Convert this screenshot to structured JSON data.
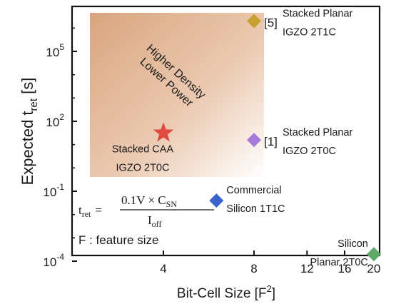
{
  "chart_data": {
    "type": "scatter",
    "title": "",
    "xlabel": "Bit-Cell Size [F",
    "xlabel_sup": "2",
    "xlabel_end": "]",
    "ylabel": "Expected t",
    "ylabel_sub": "ret",
    "ylabel_end": " [s]",
    "x_ticks": [
      "4",
      "8",
      "12",
      "16",
      "20"
    ],
    "y_ticks": [
      {
        "base": "10",
        "exp": "5"
      },
      {
        "base": "10",
        "exp": "2"
      },
      {
        "base": "10",
        "exp": "-1"
      },
      {
        "base": "10",
        "exp": "-4"
      }
    ],
    "grid": false,
    "legend": "none",
    "highlight_region": {
      "label_line1": "Higher Density",
      "label_line2": "Lower Power",
      "color": "#d9a47e"
    },
    "points": [
      {
        "x": 4,
        "y_log10": 1.5,
        "marker": "star",
        "color": "#e04a40",
        "line1": "Stacked CAA",
        "line2": "IGZO  2T0C",
        "ref": ""
      },
      {
        "x": 8,
        "y_log10": 6.3,
        "marker": "diamond",
        "color": "#c9a030",
        "line1": "Stacked Planar",
        "line2": "IGZO  2T1C",
        "ref": "[5]"
      },
      {
        "x": 8,
        "y_log10": 1.2,
        "marker": "diamond",
        "color": "#a87ad8",
        "line1": "Stacked Planar",
        "line2": "IGZO  2T0C",
        "ref": "[1]"
      },
      {
        "x": 6,
        "y_log10": -1.4,
        "marker": "diamond",
        "color": "#3b63d0",
        "line1": "Commercial",
        "line2": "Silicon 1T1C",
        "ref": ""
      },
      {
        "x": 20,
        "y_log10": -3.7,
        "marker": "diamond",
        "color": "#5ea86a",
        "line1": "Silicon",
        "line2": "Planar 2T0C",
        "ref": ""
      }
    ],
    "formula": {
      "lhs": "t",
      "lhs_sub": "ret",
      "eq": "=",
      "num_pre": "0.1V × C",
      "num_sub": "SN",
      "den": "I",
      "den_sub": "off"
    },
    "note": "F : feature size"
  }
}
